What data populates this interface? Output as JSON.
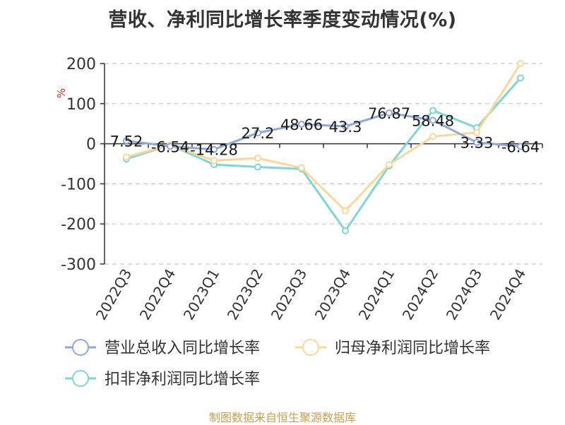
{
  "chart_data": {
    "type": "line",
    "title": "营收、净利同比增长率季度变动情况(%)",
    "ylabel": "%",
    "ylim": [
      -300,
      200
    ],
    "y_ticks": [
      200,
      100,
      0,
      -100,
      -200,
      -300
    ],
    "grid": true,
    "legend_position": "bottom",
    "categories": [
      "2022Q3",
      "2022Q4",
      "2023Q1",
      "2023Q2",
      "2023Q3",
      "2023Q4",
      "2024Q1",
      "2024Q2",
      "2024Q3",
      "2024Q4"
    ],
    "series": [
      {
        "name": "营业总收入同比增长率",
        "color": "#8fa8d8",
        "values": [
          7.52,
          -6.54,
          -14.28,
          27.2,
          48.66,
          43.3,
          76.87,
          58.48,
          3.33,
          -6.64
        ],
        "labels": [
          "7.52",
          "-6.54",
          "-14.28",
          "27.2",
          "48.66",
          "43.3",
          "76.87",
          "58.48",
          "3.33",
          "-6.64"
        ]
      },
      {
        "name": "归母净利润同比增长率",
        "color": "#fbd89a",
        "values": [
          -33,
          -3,
          -42,
          -36,
          -60,
          -167,
          -52,
          18,
          28,
          200
        ]
      },
      {
        "name": "扣非净利润同比增长率",
        "color": "#7fd6d6",
        "values": [
          -38,
          -3,
          -52,
          -58,
          -63,
          -217,
          -55,
          83,
          40,
          164
        ]
      }
    ]
  },
  "source": "制图数据来自恒生聚源数据库"
}
